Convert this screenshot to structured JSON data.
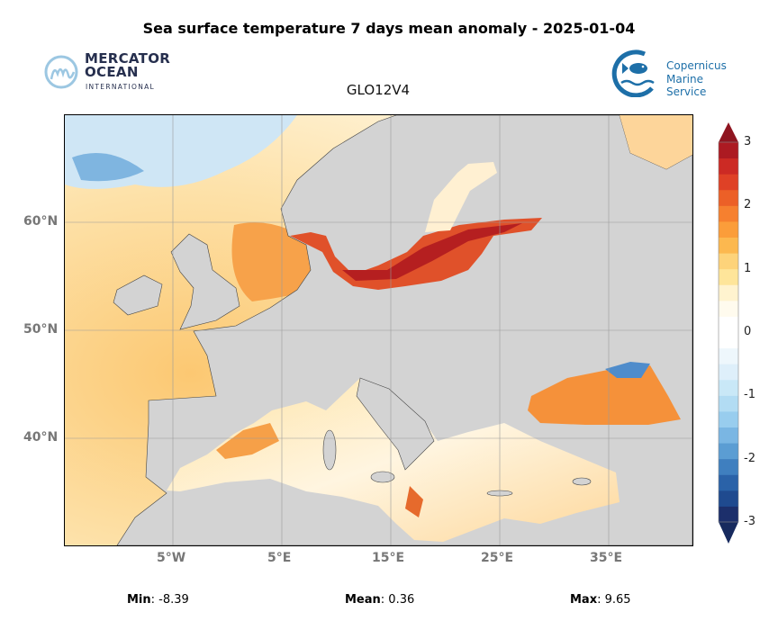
{
  "title": "Sea surface temperature 7 days mean anomaly - 2025-01-04",
  "subtitle": "GLO12V4",
  "logos": {
    "mercator": {
      "line1": "MERCATOR",
      "line2": "OCEAN",
      "line3": "INTERNATIONAL"
    },
    "copernicus": {
      "line1": "Copernicus",
      "line2": "Marine Service"
    }
  },
  "map": {
    "lon_labels": [
      "5°W",
      "5°E",
      "15°E",
      "25°E",
      "35°E"
    ],
    "lat_labels": [
      "60°N",
      "50°N",
      "40°N"
    ],
    "land_color": "#d3d3d3"
  },
  "colorbar": {
    "ticks": [
      "3",
      "2",
      "1",
      "0",
      "-1",
      "-2",
      "-3"
    ],
    "range": [
      -3,
      3
    ],
    "colors": [
      "#1c2f6b",
      "#1f4a8f",
      "#2a62a8",
      "#3f7fbf",
      "#5b9dd3",
      "#7ab6e3",
      "#98cdee",
      "#b2dcf3",
      "#c9e8f7",
      "#deeffa",
      "#eef7fc",
      "#ffffff",
      "#ffffff",
      "#fffbee",
      "#fff3cf",
      "#fee59a",
      "#fdd37a",
      "#fcb84f",
      "#fb9d3a",
      "#f6802f",
      "#ec6027",
      "#df4126",
      "#cc2a24",
      "#ac1a22"
    ]
  },
  "stats": {
    "min_label": "Min",
    "min_value": ": -8.39",
    "mean_label": "Mean",
    "mean_value": ": 0.36",
    "max_label": "Max",
    "max_value": ": 9.65"
  }
}
